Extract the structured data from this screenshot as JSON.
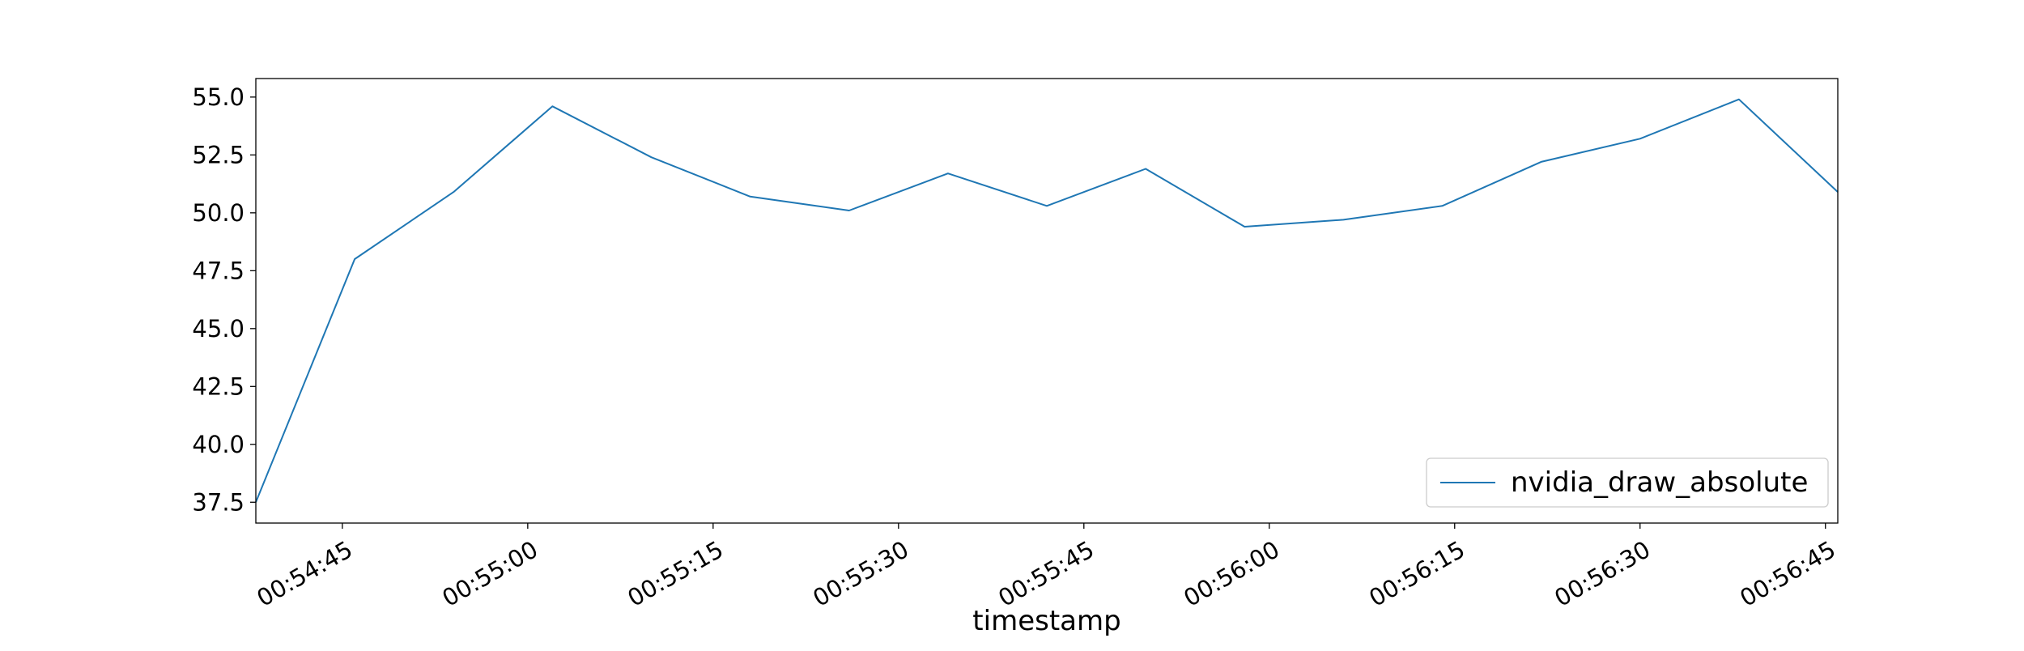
{
  "chart_data": {
    "type": "line",
    "title": "",
    "xlabel": "timestamp",
    "ylabel": "",
    "x_ticks": [
      "00:54:45",
      "00:55:00",
      "00:55:15",
      "00:55:30",
      "00:55:45",
      "00:56:00",
      "00:56:15",
      "00:56:30",
      "00:56:45"
    ],
    "y_ticks": [
      "37.5",
      "40.0",
      "42.5",
      "45.0",
      "47.5",
      "50.0",
      "52.5",
      "55.0"
    ],
    "xlim": [
      "00:54:38",
      "00:56:46"
    ],
    "ylim": [
      36.6,
      55.8
    ],
    "grid": false,
    "legend_position": "lower-right",
    "series": [
      {
        "name": "nvidia_draw_absolute",
        "color": "#1f77b4",
        "x": [
          "00:54:38",
          "00:54:46",
          "00:54:54",
          "00:55:02",
          "00:55:10",
          "00:55:18",
          "00:55:26",
          "00:55:34",
          "00:55:42",
          "00:55:50",
          "00:55:58",
          "00:56:06",
          "00:56:14",
          "00:56:22",
          "00:56:30",
          "00:56:38",
          "00:56:46"
        ],
        "values": [
          37.5,
          48.0,
          50.9,
          54.6,
          52.4,
          50.7,
          50.1,
          51.7,
          50.3,
          51.9,
          49.4,
          49.7,
          50.3,
          52.2,
          53.2,
          54.9,
          50.9
        ]
      }
    ]
  }
}
